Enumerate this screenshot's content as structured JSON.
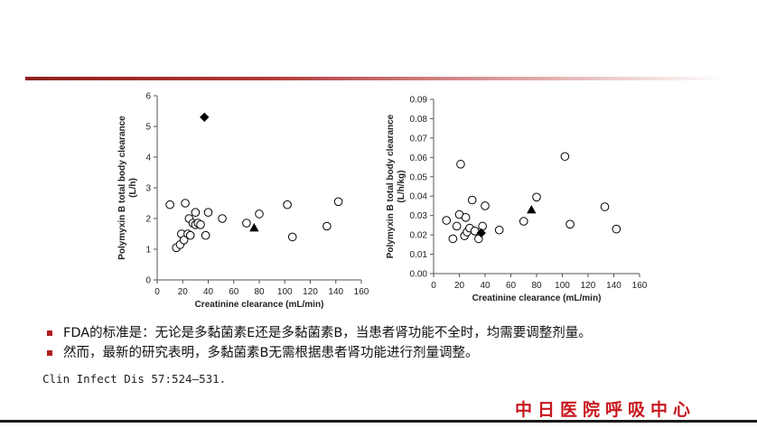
{
  "bullets": [
    "FDA的标准是：无论是多黏菌素E还是多黏菌素B，当患者肾功能不全时，均需要调整剂量。",
    "然而，最新的研究表明，多黏菌素B无需根据患者肾功能进行剂量调整。"
  ],
  "citation": "Clin Infect Dis 57:524–531.",
  "logo": "中日医院呼吸中心",
  "colors": {
    "accent": "#b01e1e",
    "logo": "#c8171e",
    "marker": "#000000"
  },
  "chart_data": [
    {
      "type": "scatter",
      "xlabel": "Creatinine clearance (mL/min)",
      "ylabel": [
        "Polymyxin B total body clearance",
        "(L/h)"
      ],
      "xlim": [
        0,
        160
      ],
      "ylim": [
        0,
        6
      ],
      "xticks": [
        "0",
        "20",
        "40",
        "60",
        "80",
        "100",
        "120",
        "140",
        "160"
      ],
      "yticks": [
        "0",
        "1",
        "2",
        "3",
        "4",
        "5",
        "6"
      ],
      "grid": false,
      "series": [
        {
          "marker": "circle-open",
          "points": [
            [
              10,
              2.45
            ],
            [
              15,
              1.05
            ],
            [
              18,
              1.15
            ],
            [
              19,
              1.5
            ],
            [
              21,
              1.3
            ],
            [
              22,
              2.5
            ],
            [
              24,
              1.5
            ],
            [
              25,
              2.0
            ],
            [
              26,
              1.45
            ],
            [
              28,
              1.85
            ],
            [
              30,
              2.2
            ],
            [
              30,
              1.8
            ],
            [
              32,
              1.85
            ],
            [
              34,
              1.8
            ],
            [
              38,
              1.45
            ],
            [
              40,
              2.2
            ],
            [
              51,
              2.0
            ],
            [
              70,
              1.85
            ],
            [
              80,
              2.15
            ],
            [
              102,
              2.45
            ],
            [
              106,
              1.4
            ],
            [
              133,
              1.75
            ],
            [
              142,
              2.55
            ]
          ]
        },
        {
          "marker": "diamond-filled",
          "points": [
            [
              37,
              5.3
            ]
          ]
        },
        {
          "marker": "triangle-filled",
          "points": [
            [
              76,
              1.7
            ]
          ]
        }
      ]
    },
    {
      "type": "scatter",
      "xlabel": "Creatinine clearance (mL/min)",
      "ylabel": [
        "Polymyxin B total body clearance",
        "(L/h/kg)"
      ],
      "xlim": [
        0,
        160
      ],
      "ylim": [
        0,
        0.09
      ],
      "xticks": [
        "0",
        "20",
        "40",
        "60",
        "80",
        "100",
        "120",
        "140",
        "160"
      ],
      "yticks": [
        "0.00",
        "0.01",
        "0.02",
        "0.03",
        "0.04",
        "0.05",
        "0.06",
        "0.07",
        "0.08",
        "0.09"
      ],
      "grid": false,
      "series": [
        {
          "marker": "circle-open",
          "points": [
            [
              10,
              0.0275
            ],
            [
              15,
              0.018
            ],
            [
              18,
              0.0245
            ],
            [
              20,
              0.0305
            ],
            [
              21,
              0.0565
            ],
            [
              24,
              0.0195
            ],
            [
              25,
              0.029
            ],
            [
              26,
              0.0215
            ],
            [
              28,
              0.0235
            ],
            [
              30,
              0.038
            ],
            [
              32,
              0.022
            ],
            [
              35,
              0.018
            ],
            [
              38,
              0.0245
            ],
            [
              40,
              0.035
            ],
            [
              51,
              0.0225
            ],
            [
              70,
              0.027
            ],
            [
              80,
              0.0395
            ],
            [
              102,
              0.0605
            ],
            [
              106,
              0.0255
            ],
            [
              133,
              0.0345
            ],
            [
              142,
              0.023
            ]
          ]
        },
        {
          "marker": "diamond-filled",
          "points": [
            [
              37,
              0.021
            ]
          ]
        },
        {
          "marker": "triangle-filled",
          "points": [
            [
              76,
              0.033
            ]
          ]
        }
      ]
    }
  ]
}
